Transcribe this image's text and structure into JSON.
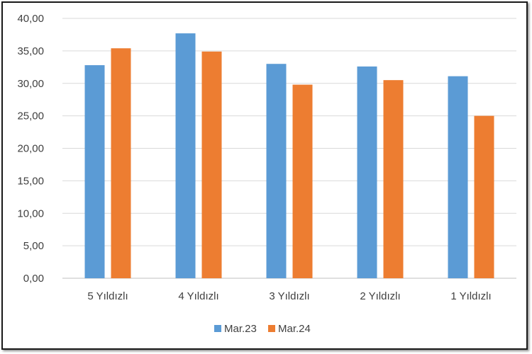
{
  "chart_data": {
    "type": "bar",
    "categories": [
      "5 Yıldızlı",
      "4 Yıldızlı",
      "3 Yıldızlı",
      "2 Yıldızlı",
      "1 Yıldızlı"
    ],
    "series": [
      {
        "name": "Mar.23",
        "color": "#5B9BD5",
        "values": [
          32.8,
          37.7,
          33.0,
          32.6,
          31.1
        ]
      },
      {
        "name": "Mar.24",
        "color": "#ED7D31",
        "values": [
          35.4,
          34.9,
          29.8,
          30.5,
          25.0
        ]
      }
    ],
    "yticks": [
      "0,00",
      "5,00",
      "10,00",
      "15,00",
      "20,00",
      "25,00",
      "30,00",
      "35,00",
      "40,00"
    ],
    "ylim": [
      0,
      40
    ],
    "grid": true,
    "legend_position": "bottom",
    "title": "",
    "xlabel": "",
    "ylabel": ""
  }
}
